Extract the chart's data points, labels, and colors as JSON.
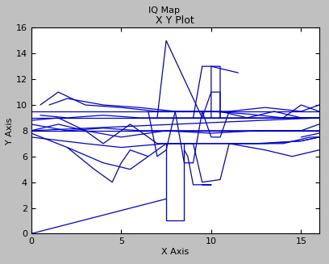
{
  "title": "X Y Plot",
  "window_title": "IQ Map",
  "xlabel": "X Axis",
  "ylabel": "Y Axis",
  "xlim": [
    0,
    16
  ],
  "ylim": [
    0,
    16
  ],
  "xticks": [
    0,
    5,
    10,
    15
  ],
  "yticks": [
    0,
    2,
    4,
    6,
    8,
    10,
    12,
    14,
    16
  ],
  "line_color": "#0000CC",
  "bg_color": "#ffffff",
  "outer_bg": "#C0C0C0",
  "title_bar_bg": "#D4D0C8",
  "segments": [
    [
      [
        0.0,
        0.0
      ],
      [
        7.5,
        2.7
      ]
    ],
    [
      [
        0.0,
        8.0
      ],
      [
        16.0,
        8.0
      ]
    ],
    [
      [
        0.0,
        9.0
      ],
      [
        16.0,
        9.0
      ]
    ],
    [
      [
        0.0,
        8.0
      ],
      [
        16.0,
        9.0
      ]
    ],
    [
      [
        0.0,
        7.5
      ],
      [
        3.0,
        7.0
      ],
      [
        5.0,
        6.7
      ],
      [
        7.5,
        7.0
      ],
      [
        10.0,
        7.0
      ],
      [
        12.5,
        7.0
      ],
      [
        15.0,
        7.2
      ],
      [
        16.0,
        7.5
      ]
    ],
    [
      [
        0.5,
        10.0
      ],
      [
        1.5,
        11.0
      ],
      [
        3.0,
        10.0
      ],
      [
        5.0,
        9.8
      ],
      [
        7.0,
        9.5
      ],
      [
        9.0,
        9.5
      ],
      [
        11.0,
        9.5
      ],
      [
        13.0,
        9.8
      ],
      [
        15.0,
        9.5
      ],
      [
        16.0,
        10.0
      ]
    ],
    [
      [
        0.0,
        9.5
      ],
      [
        2.0,
        9.5
      ],
      [
        4.0,
        9.5
      ],
      [
        6.0,
        9.5
      ],
      [
        8.0,
        9.5
      ],
      [
        10.0,
        9.5
      ],
      [
        12.0,
        9.5
      ],
      [
        14.0,
        9.5
      ],
      [
        16.0,
        9.5
      ]
    ],
    [
      [
        0.0,
        8.5
      ],
      [
        2.0,
        8.0
      ],
      [
        4.0,
        8.2
      ],
      [
        6.0,
        8.0
      ],
      [
        8.0,
        8.0
      ],
      [
        10.0,
        8.0
      ],
      [
        12.0,
        8.0
      ],
      [
        14.0,
        8.0
      ],
      [
        16.0,
        8.0
      ]
    ],
    [
      [
        1.0,
        10.0
      ],
      [
        2.0,
        10.5
      ],
      [
        4.0,
        10.0
      ],
      [
        6.0,
        9.8
      ],
      [
        8.0,
        9.5
      ],
      [
        10.0,
        9.5
      ],
      [
        12.0,
        9.3
      ],
      [
        14.0,
        9.0
      ],
      [
        16.0,
        9.0
      ]
    ],
    [
      [
        0.0,
        7.8
      ],
      [
        2.0,
        6.7
      ],
      [
        4.0,
        5.5
      ],
      [
        5.5,
        5.0
      ],
      [
        6.5,
        6.0
      ],
      [
        7.5,
        7.0
      ],
      [
        9.0,
        7.0
      ],
      [
        11.0,
        7.0
      ],
      [
        13.0,
        7.0
      ],
      [
        15.0,
        7.2
      ],
      [
        16.0,
        7.5
      ]
    ],
    [
      [
        2.0,
        6.7
      ],
      [
        3.5,
        5.0
      ],
      [
        4.5,
        4.0
      ],
      [
        5.0,
        5.5
      ],
      [
        5.5,
        6.5
      ],
      [
        6.5,
        6.0
      ]
    ],
    [
      [
        0.0,
        8.8
      ],
      [
        1.5,
        9.0
      ],
      [
        3.0,
        8.0
      ],
      [
        4.0,
        7.0
      ],
      [
        5.5,
        8.5
      ],
      [
        7.0,
        7.0
      ],
      [
        9.0,
        7.0
      ]
    ],
    [
      [
        9.0,
        7.0
      ],
      [
        9.5,
        4.0
      ],
      [
        10.5,
        4.2
      ],
      [
        11.0,
        7.0
      ],
      [
        12.5,
        7.0
      ],
      [
        14.0,
        7.0
      ],
      [
        15.5,
        7.5
      ],
      [
        16.0,
        7.5
      ]
    ],
    [
      [
        0.0,
        8.0
      ],
      [
        1.5,
        8.5
      ],
      [
        3.0,
        8.0
      ],
      [
        5.0,
        7.5
      ],
      [
        7.5,
        8.0
      ],
      [
        10.0,
        7.8
      ],
      [
        12.5,
        8.0
      ],
      [
        15.0,
        8.0
      ],
      [
        16.0,
        8.5
      ]
    ],
    [
      [
        0.5,
        9.2
      ],
      [
        2.0,
        9.0
      ],
      [
        4.0,
        9.2
      ],
      [
        6.0,
        9.0
      ],
      [
        8.0,
        9.0
      ],
      [
        10.0,
        9.0
      ],
      [
        12.0,
        9.0
      ],
      [
        14.0,
        9.0
      ],
      [
        16.0,
        9.0
      ]
    ],
    [
      [
        7.0,
        9.0
      ],
      [
        7.5,
        15.0
      ],
      [
        9.5,
        9.0
      ]
    ],
    [
      [
        7.5,
        7.0
      ],
      [
        7.5,
        6.0
      ],
      [
        7.5,
        1.0
      ],
      [
        8.0,
        1.0
      ],
      [
        8.5,
        1.0
      ],
      [
        8.5,
        6.0
      ],
      [
        8.5,
        7.0
      ]
    ],
    [
      [
        8.5,
        6.5
      ],
      [
        8.7,
        6.0
      ],
      [
        9.0,
        3.8
      ],
      [
        9.5,
        3.8
      ],
      [
        10.0,
        3.8
      ],
      [
        9.5,
        3.8
      ]
    ],
    [
      [
        9.0,
        9.0
      ],
      [
        9.5,
        13.0
      ],
      [
        10.5,
        13.0
      ],
      [
        10.5,
        9.0
      ]
    ],
    [
      [
        10.0,
        9.0
      ],
      [
        10.0,
        13.0
      ],
      [
        11.5,
        12.5
      ]
    ],
    [
      [
        9.5,
        9.0
      ],
      [
        10.0,
        11.0
      ],
      [
        10.5,
        11.0
      ],
      [
        10.5,
        9.0
      ]
    ],
    [
      [
        10.5,
        9.5
      ],
      [
        12.0,
        9.0
      ],
      [
        13.5,
        9.5
      ],
      [
        15.0,
        9.0
      ],
      [
        16.0,
        9.0
      ]
    ],
    [
      [
        11.0,
        7.0
      ],
      [
        13.0,
        6.5
      ],
      [
        14.5,
        6.0
      ],
      [
        16.0,
        6.5
      ]
    ],
    [
      [
        14.0,
        9.0
      ],
      [
        15.0,
        10.0
      ],
      [
        16.0,
        9.5
      ]
    ],
    [
      [
        15.0,
        7.5
      ],
      [
        16.0,
        7.8
      ]
    ],
    [
      [
        6.5,
        9.5
      ],
      [
        7.0,
        6.0
      ],
      [
        7.5,
        6.5
      ],
      [
        8.0,
        9.5
      ]
    ],
    [
      [
        8.0,
        9.5
      ],
      [
        8.5,
        5.5
      ],
      [
        9.0,
        5.5
      ],
      [
        9.5,
        9.5
      ]
    ],
    [
      [
        9.5,
        9.5
      ],
      [
        10.0,
        7.5
      ],
      [
        10.5,
        7.5
      ],
      [
        11.0,
        9.5
      ]
    ]
  ]
}
